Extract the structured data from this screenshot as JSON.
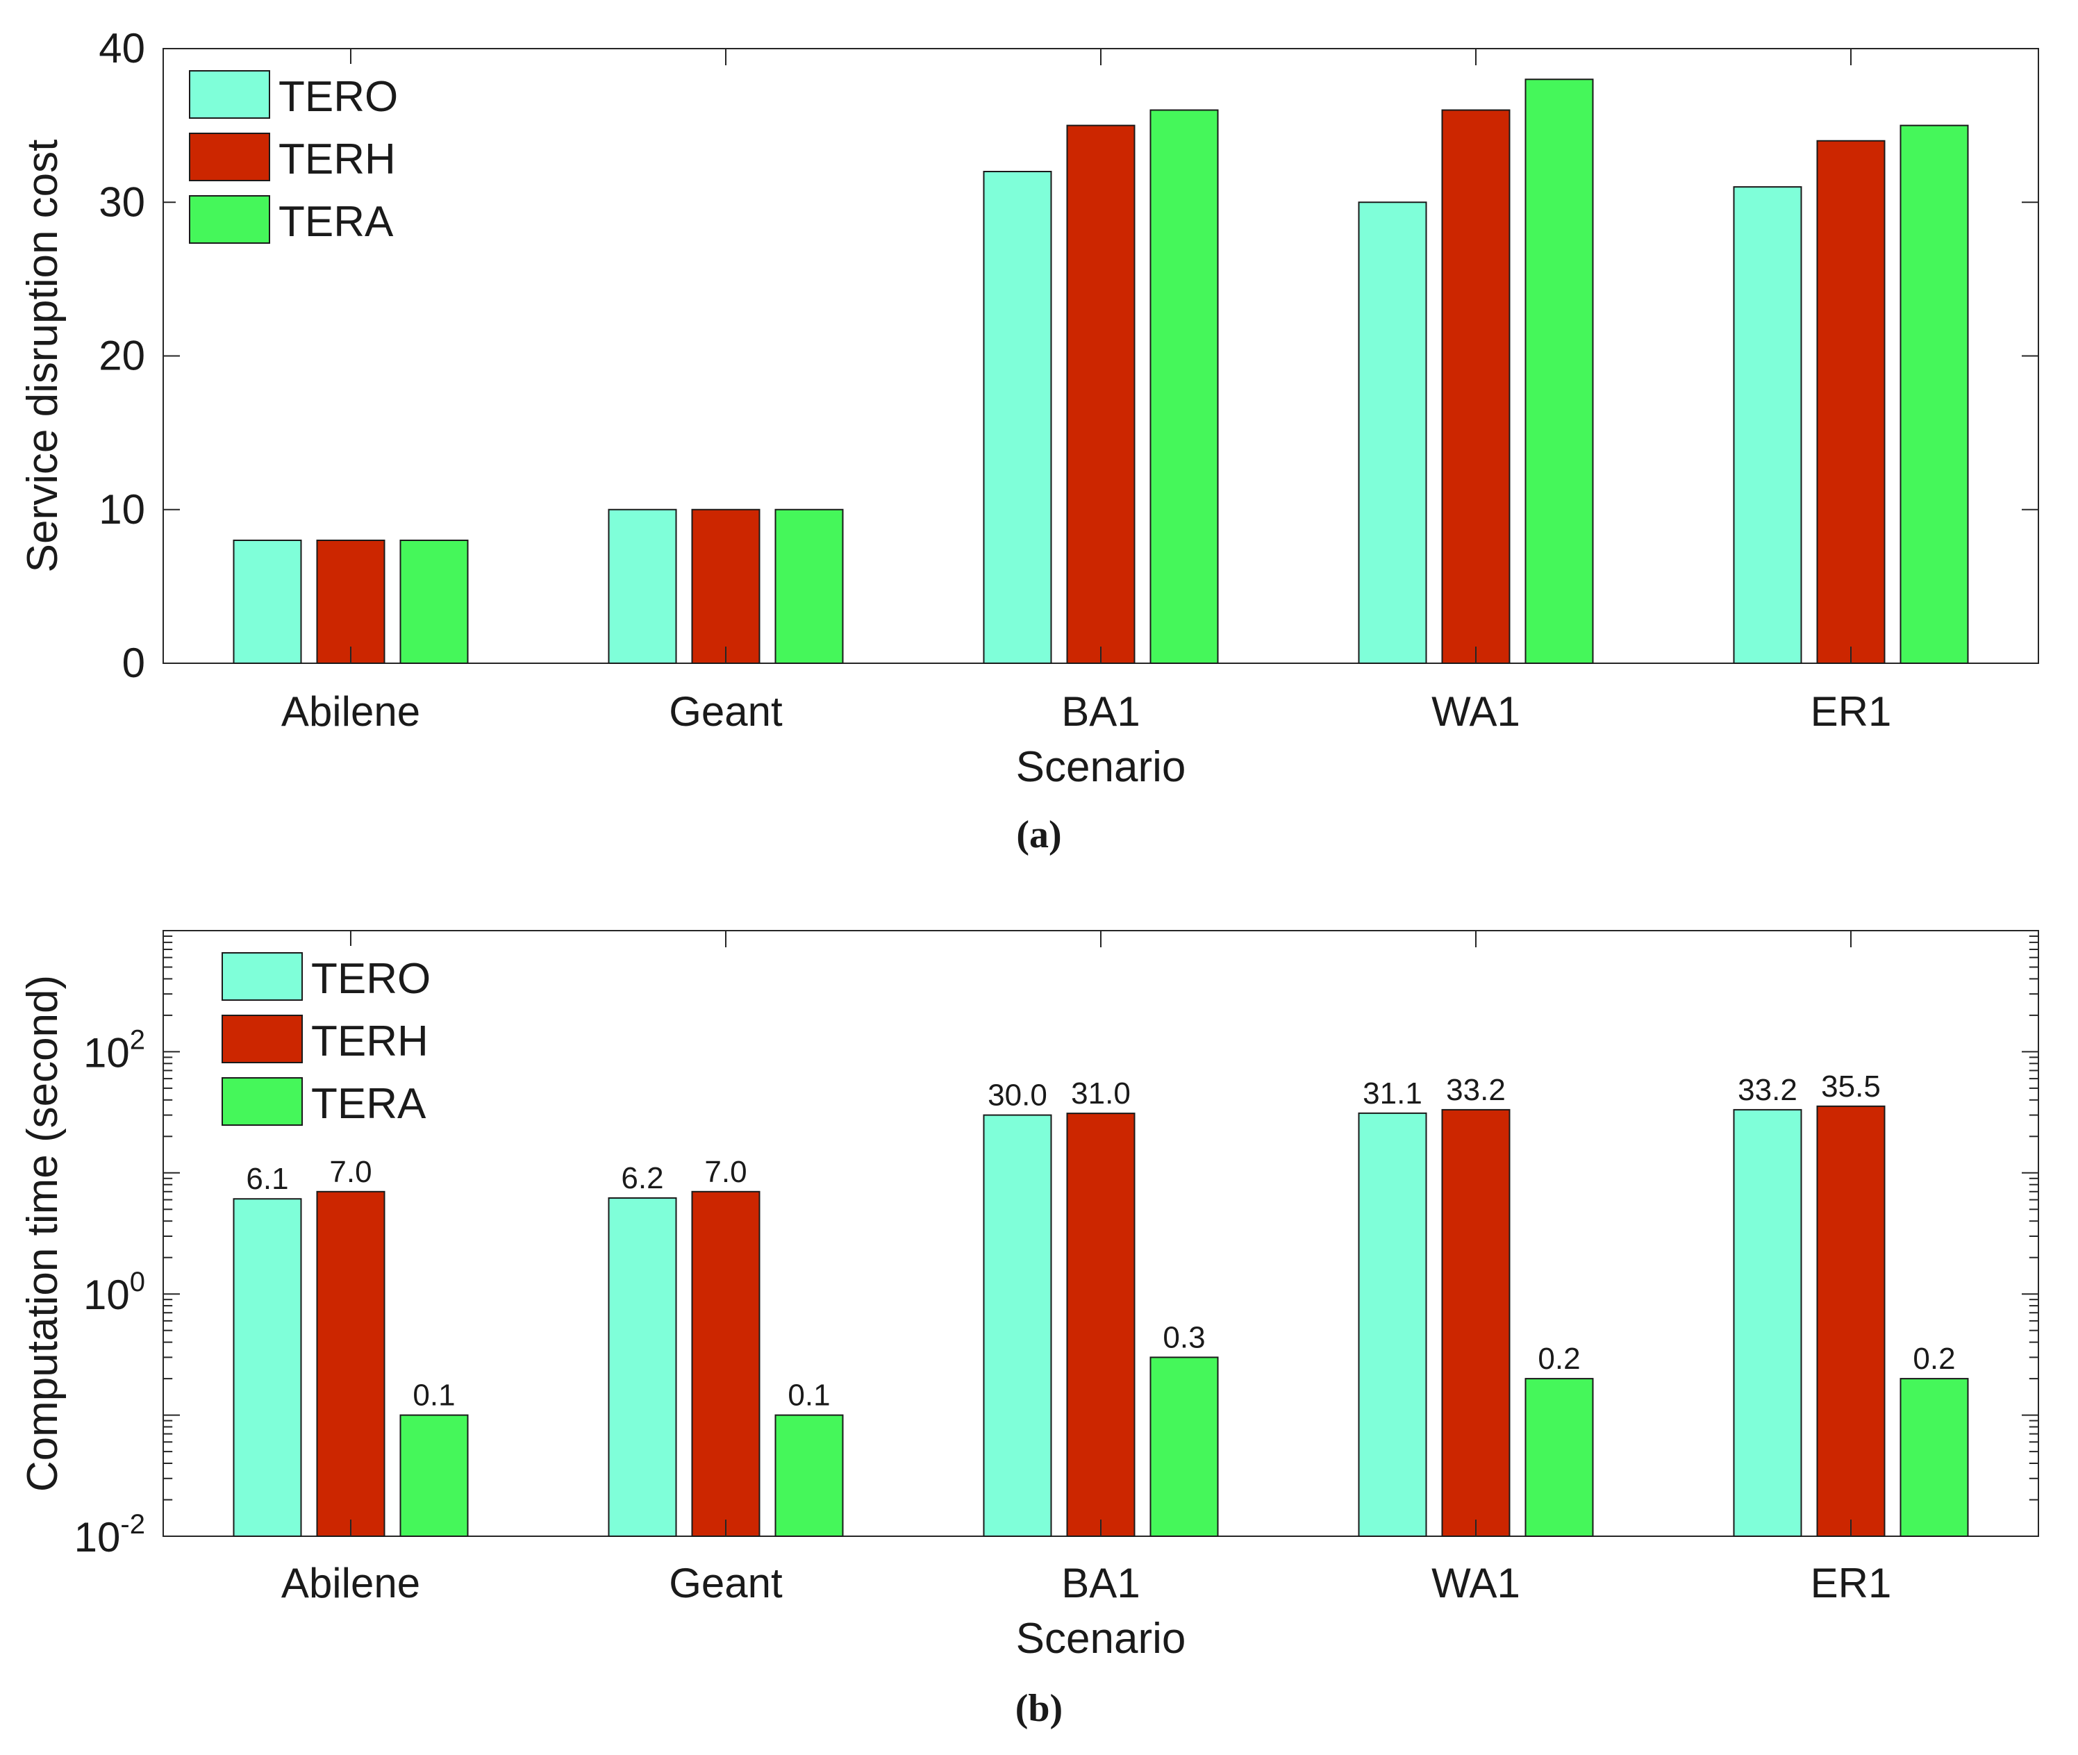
{
  "chart_data": [
    {
      "type": "bar",
      "panel_label": "(a)",
      "title": "",
      "xlabel": "Scenario",
      "ylabel": "Service disruption cost",
      "yscale": "linear",
      "ylim": [
        0,
        40
      ],
      "yticks": [
        0,
        10,
        20,
        30,
        40
      ],
      "ytick_labels": [
        "0",
        "10",
        "20",
        "30",
        "40"
      ],
      "grid": false,
      "legend_position": "top-left",
      "categories": [
        "Abilene",
        "Geant",
        "BA1",
        "WA1",
        "ER1"
      ],
      "series": [
        {
          "name": "TERO",
          "color": "#7fffd9",
          "values": [
            8,
            10,
            32,
            30,
            31
          ]
        },
        {
          "name": "TERH",
          "color": "#cc2600",
          "values": [
            8,
            10,
            35,
            36,
            34
          ]
        },
        {
          "name": "TERA",
          "color": "#45f75a",
          "values": [
            8,
            10,
            36,
            38,
            35
          ]
        }
      ]
    },
    {
      "type": "bar",
      "panel_label": "(b)",
      "title": "",
      "xlabel": "Scenario",
      "ylabel": "Computation time (second)",
      "yscale": "log",
      "ylim": [
        0.01,
        1000
      ],
      "ytick_labels": [
        {
          "value": 0.01,
          "base": "10",
          "exp": "-2"
        },
        {
          "value": 1,
          "base": "10",
          "exp": "0"
        },
        {
          "value": 100,
          "base": "10",
          "exp": "2"
        }
      ],
      "grid": false,
      "legend_position": "top-left",
      "categories": [
        "Abilene",
        "Geant",
        "BA1",
        "WA1",
        "ER1"
      ],
      "series": [
        {
          "name": "TERO",
          "color": "#7fffd9",
          "values": [
            6.1,
            6.2,
            30.0,
            31.1,
            33.2
          ],
          "labels": [
            "6.1",
            "6.2",
            "30.0",
            "31.1",
            "33.2"
          ]
        },
        {
          "name": "TERH",
          "color": "#cc2600",
          "values": [
            7.0,
            7.0,
            31.0,
            33.2,
            35.5
          ],
          "labels": [
            "7.0",
            "7.0",
            "31.0",
            "33.2",
            "35.5"
          ]
        },
        {
          "name": "TERA",
          "color": "#45f75a",
          "values": [
            0.1,
            0.1,
            0.3,
            0.2,
            0.2
          ],
          "labels": [
            "0.1",
            "0.1",
            "0.3",
            "0.2",
            "0.2"
          ]
        }
      ]
    }
  ]
}
